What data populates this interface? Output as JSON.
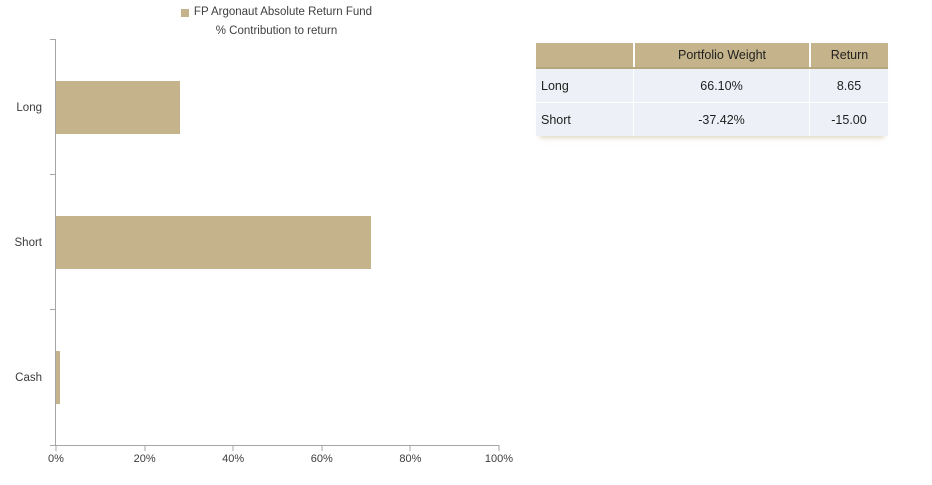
{
  "chart_data": {
    "type": "bar",
    "orientation": "horizontal",
    "legend_label": "FP Argonaut Absolute Return Fund",
    "title": "% Contribution to return",
    "categories": [
      "Long",
      "Short",
      "Cash"
    ],
    "values": [
      28,
      71,
      1
    ],
    "value_unit": "%",
    "xlim": [
      0,
      100
    ],
    "xticks": [
      "0%",
      "20%",
      "40%",
      "60%",
      "80%",
      "100%"
    ],
    "legend_position": "top-center",
    "grid": false,
    "bar_color": "#c5b48b",
    "axis_color": "#a6a6a6"
  },
  "table": {
    "headers": [
      "",
      "Portfolio Weight",
      "Return"
    ],
    "rows": [
      {
        "label": "Long",
        "portfolio_weight": "66.10%",
        "return": "8.65"
      },
      {
        "label": "Short",
        "portfolio_weight": "-37.42%",
        "return": "-15.00"
      }
    ],
    "header_bg": "#c5b48b",
    "row_bg": "#edf0f6"
  }
}
